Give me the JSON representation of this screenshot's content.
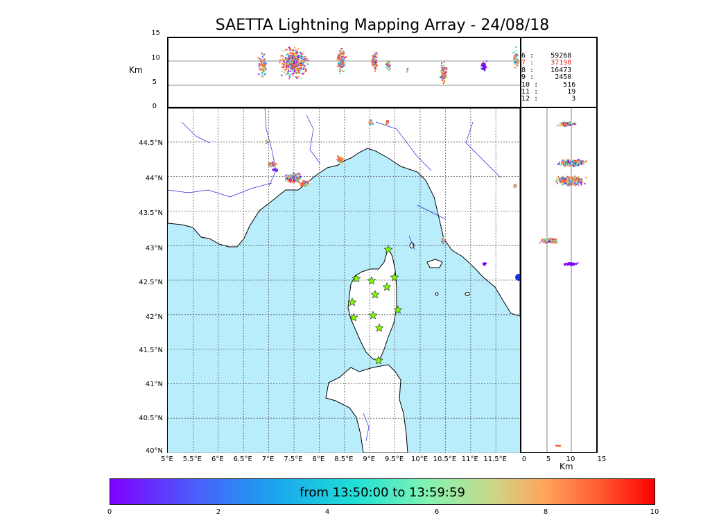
{
  "title": "SAETTA Lightning Mapping Array - 24/08/18",
  "altitude_axis": {
    "label": "Km",
    "ticks": [
      "15",
      "10",
      "5",
      "0"
    ]
  },
  "counts": [
    {
      "alt": "6",
      "count": "59268"
    },
    {
      "alt": "7",
      "count": "37198"
    },
    {
      "alt": "8",
      "count": "16473"
    },
    {
      "alt": "9",
      "count": "2450"
    },
    {
      "alt": "10",
      "count": "516"
    },
    {
      "alt": "11",
      "count": "19"
    },
    {
      "alt": "12",
      "count": "3"
    }
  ],
  "highlight_color": "#e41a1a",
  "lat_ticks": [
    "44.5°N",
    "44°N",
    "43.5°N",
    "43°N",
    "42.5°N",
    "42°N",
    "41.5°N",
    "41°N",
    "40.5°N",
    "40°N"
  ],
  "lon_ticks": [
    "5°E",
    "5.5°E",
    "6°E",
    "6.5°E",
    "7°E",
    "7.5°E",
    "8°E",
    "8.5°E",
    "9°E",
    "9.5°E",
    "10°E",
    "10.5°E",
    "11°E",
    "11.5°E"
  ],
  "side_axis": {
    "label": "Km",
    "ticks": [
      "0",
      "5",
      "10",
      "15"
    ]
  },
  "colorbar": {
    "label": "from 13:50:00 to 13:59:59",
    "ticks": [
      "0",
      "2",
      "4",
      "6",
      "8",
      "10"
    ]
  },
  "colors": {
    "sea": "#b9edfc",
    "river": "#2222dd",
    "station_marker": "#7fff00",
    "dominant_lightning": "#ff5a2e"
  }
}
